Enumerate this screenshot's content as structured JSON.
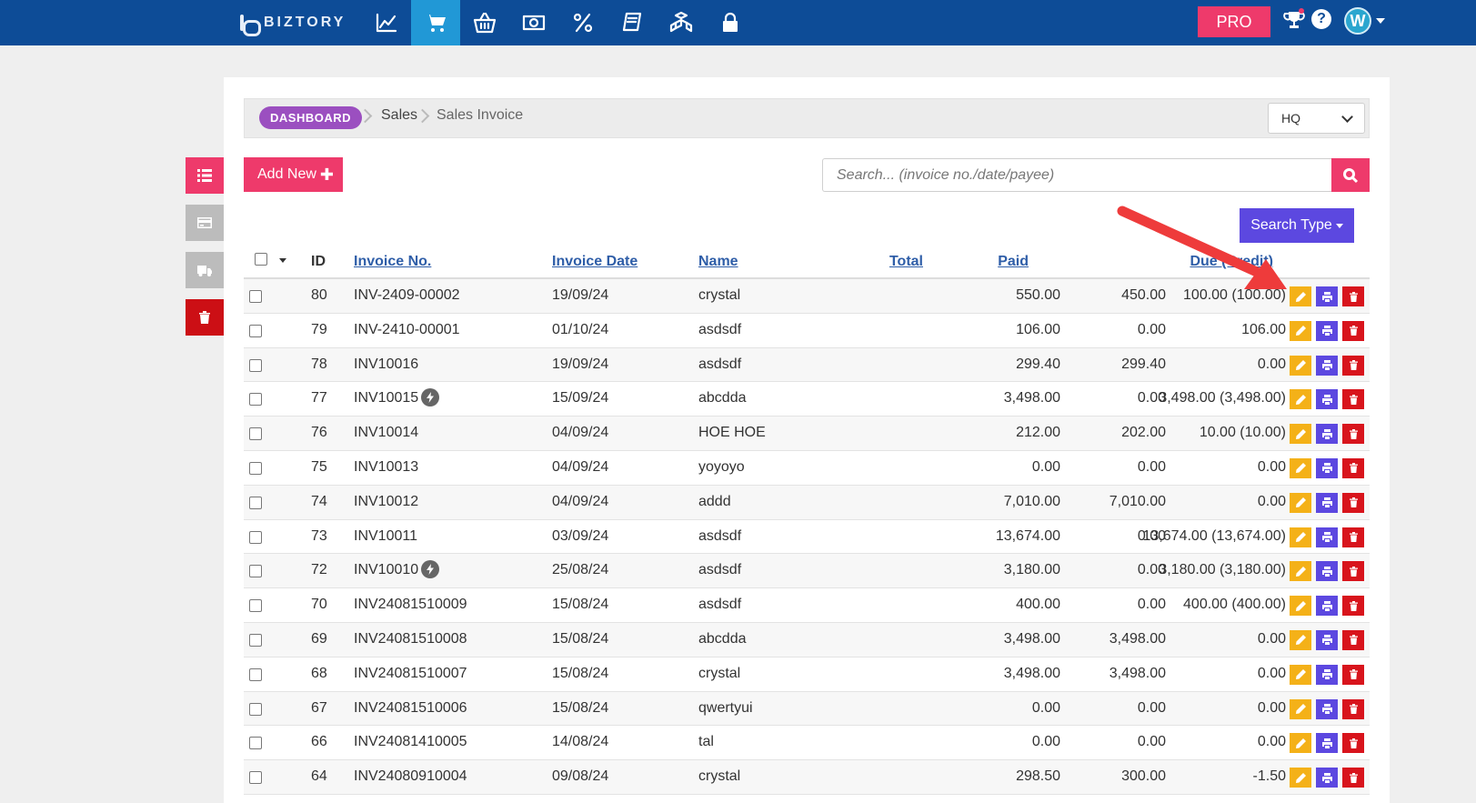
{
  "app": {
    "brand": "BIZTORY"
  },
  "topnav": {
    "icons": [
      "chart-line-icon",
      "cart-icon",
      "basket-icon",
      "money-icon",
      "percent-icon",
      "book-icon",
      "boxes-icon",
      "lock-icon"
    ],
    "active_index": 1,
    "pro_label": "PRO",
    "help_label": "?",
    "avatar_letter": "W"
  },
  "breadcrumb": {
    "dashboard": "DASHBOARD",
    "section": "Sales",
    "page": "Sales Invoice"
  },
  "branch_select": {
    "value": "HQ"
  },
  "toolbar": {
    "add_label": "Add New",
    "search_placeholder": "Search... (invoice no./date/payee)",
    "search_type_label": "Search Type"
  },
  "table": {
    "headers": {
      "id": "ID",
      "invoice_no": "Invoice No.",
      "invoice_date": "Invoice Date",
      "name": "Name",
      "total": "Total",
      "paid": "Paid",
      "due": "Due (Credit)"
    },
    "rows": [
      {
        "id": "80",
        "invoice": "INV-2409-00002",
        "bolt": false,
        "date": "19/09/24",
        "name": "crystal",
        "total": "550.00",
        "paid": "450.00",
        "due": "100.00 (100.00)"
      },
      {
        "id": "79",
        "invoice": "INV-2410-00001",
        "bolt": false,
        "date": "01/10/24",
        "name": "asdsdf",
        "total": "106.00",
        "paid": "0.00",
        "due": "106.00"
      },
      {
        "id": "78",
        "invoice": "INV10016",
        "bolt": false,
        "date": "19/09/24",
        "name": "asdsdf",
        "total": "299.40",
        "paid": "299.40",
        "due": "0.00"
      },
      {
        "id": "77",
        "invoice": "INV10015",
        "bolt": true,
        "date": "15/09/24",
        "name": "abcdda",
        "total": "3,498.00",
        "paid": "0.00",
        "due": "3,498.00 (3,498.00)"
      },
      {
        "id": "76",
        "invoice": "INV10014",
        "bolt": false,
        "date": "04/09/24",
        "name": "HOE HOE",
        "total": "212.00",
        "paid": "202.00",
        "due": "10.00 (10.00)"
      },
      {
        "id": "75",
        "invoice": "INV10013",
        "bolt": false,
        "date": "04/09/24",
        "name": "yoyoyo",
        "total": "0.00",
        "paid": "0.00",
        "due": "0.00"
      },
      {
        "id": "74",
        "invoice": "INV10012",
        "bolt": false,
        "date": "04/09/24",
        "name": "addd",
        "total": "7,010.00",
        "paid": "7,010.00",
        "due": "0.00"
      },
      {
        "id": "73",
        "invoice": "INV10011",
        "bolt": false,
        "date": "03/09/24",
        "name": "asdsdf",
        "total": "13,674.00",
        "paid": "0.00",
        "due": "13,674.00 (13,674.00)"
      },
      {
        "id": "72",
        "invoice": "INV10010",
        "bolt": true,
        "date": "25/08/24",
        "name": "asdsdf",
        "total": "3,180.00",
        "paid": "0.00",
        "due": "3,180.00 (3,180.00)"
      },
      {
        "id": "70",
        "invoice": "INV24081510009",
        "bolt": false,
        "date": "15/08/24",
        "name": "asdsdf",
        "total": "400.00",
        "paid": "0.00",
        "due": "400.00 (400.00)"
      },
      {
        "id": "69",
        "invoice": "INV24081510008",
        "bolt": false,
        "date": "15/08/24",
        "name": "abcdda",
        "total": "3,498.00",
        "paid": "3,498.00",
        "due": "0.00"
      },
      {
        "id": "68",
        "invoice": "INV24081510007",
        "bolt": false,
        "date": "15/08/24",
        "name": "crystal",
        "total": "3,498.00",
        "paid": "3,498.00",
        "due": "0.00"
      },
      {
        "id": "67",
        "invoice": "INV24081510006",
        "bolt": false,
        "date": "15/08/24",
        "name": "qwertyui",
        "total": "0.00",
        "paid": "0.00",
        "due": "0.00"
      },
      {
        "id": "66",
        "invoice": "INV24081410005",
        "bolt": false,
        "date": "14/08/24",
        "name": "tal",
        "total": "0.00",
        "paid": "0.00",
        "due": "0.00"
      },
      {
        "id": "64",
        "invoice": "INV24080910004",
        "bolt": false,
        "date": "09/08/24",
        "name": "crystal",
        "total": "298.50",
        "paid": "300.00",
        "due": "-1.50"
      }
    ]
  },
  "colors": {
    "nav": "#0d4c97",
    "nav_active": "#2198d6",
    "pink": "#ee3a6b",
    "purple": "#5c48e0",
    "edit": "#f4b118",
    "delete": "#d8141c",
    "annotation_arrow": "#ee3b3b"
  }
}
